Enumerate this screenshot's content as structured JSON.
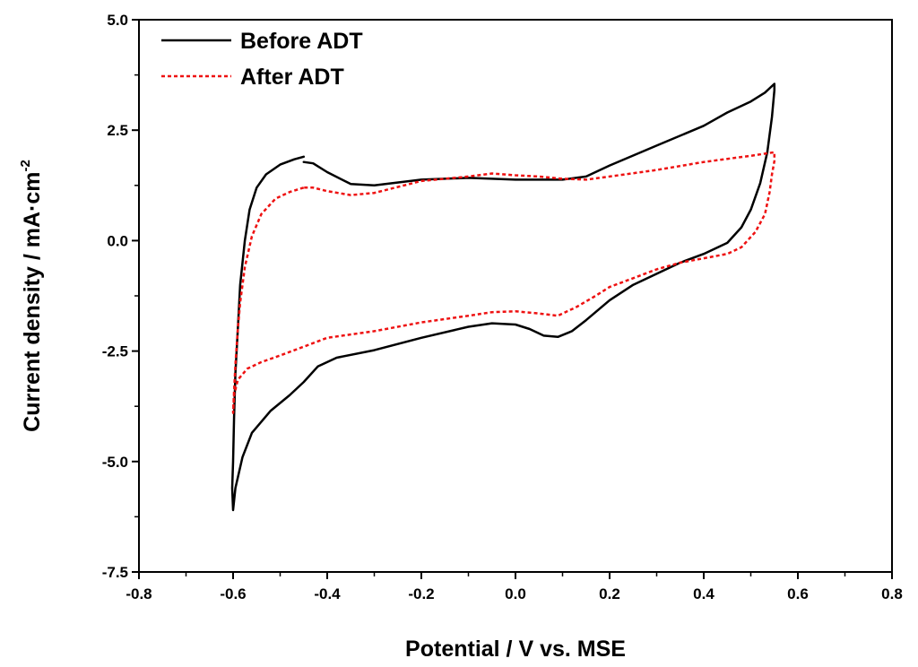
{
  "chart_data": {
    "type": "line",
    "title": "",
    "xlabel": "Potential / V vs. MSE",
    "ylabel_main": "Current density / mA·cm",
    "ylabel_superscript": "-2",
    "xlim": [
      -0.8,
      0.8
    ],
    "ylim": [
      -7.5,
      5.0
    ],
    "xticks": [
      -0.8,
      -0.6,
      -0.4,
      -0.2,
      0.0,
      0.2,
      0.4,
      0.6,
      0.8
    ],
    "xtick_labels": [
      "-0.8",
      "-0.6",
      "-0.4",
      "-0.2",
      "0.0",
      "0.2",
      "0.4",
      "0.6",
      "0.8"
    ],
    "yticks": [
      -7.5,
      -5.0,
      -2.5,
      0.0,
      2.5,
      5.0
    ],
    "ytick_labels": [
      "-7.5",
      "-5.0",
      "-2.5",
      "0.0",
      "2.5",
      "5.0"
    ],
    "grid": false,
    "legend_position": "top-left",
    "series": [
      {
        "name": "Before ADT",
        "color": "#000000",
        "style": "solid",
        "points": [
          [
            -0.45,
            1.9
          ],
          [
            -0.47,
            1.84
          ],
          [
            -0.5,
            1.72
          ],
          [
            -0.53,
            1.5
          ],
          [
            -0.55,
            1.2
          ],
          [
            -0.565,
            0.7
          ],
          [
            -0.575,
            0.0
          ],
          [
            -0.585,
            -1.0
          ],
          [
            -0.59,
            -2.0
          ],
          [
            -0.595,
            -3.0
          ],
          [
            -0.598,
            -4.0
          ],
          [
            -0.6,
            -5.0
          ],
          [
            -0.602,
            -5.6
          ],
          [
            -0.6,
            -6.1
          ],
          [
            -0.595,
            -5.6
          ],
          [
            -0.58,
            -4.9
          ],
          [
            -0.56,
            -4.35
          ],
          [
            -0.52,
            -3.85
          ],
          [
            -0.48,
            -3.5
          ],
          [
            -0.45,
            -3.2
          ],
          [
            -0.42,
            -2.85
          ],
          [
            -0.38,
            -2.65
          ],
          [
            -0.3,
            -2.48
          ],
          [
            -0.2,
            -2.2
          ],
          [
            -0.1,
            -1.95
          ],
          [
            -0.05,
            -1.87
          ],
          [
            0.0,
            -1.9
          ],
          [
            0.03,
            -2.0
          ],
          [
            0.06,
            -2.15
          ],
          [
            0.09,
            -2.18
          ],
          [
            0.12,
            -2.05
          ],
          [
            0.15,
            -1.8
          ],
          [
            0.2,
            -1.35
          ],
          [
            0.25,
            -1.0
          ],
          [
            0.3,
            -0.75
          ],
          [
            0.35,
            -0.5
          ],
          [
            0.4,
            -0.3
          ],
          [
            0.45,
            -0.05
          ],
          [
            0.48,
            0.3
          ],
          [
            0.5,
            0.7
          ],
          [
            0.52,
            1.3
          ],
          [
            0.535,
            2.0
          ],
          [
            0.545,
            2.8
          ],
          [
            0.55,
            3.4
          ],
          [
            0.55,
            3.55
          ],
          [
            0.53,
            3.35
          ],
          [
            0.5,
            3.15
          ],
          [
            0.45,
            2.9
          ],
          [
            0.4,
            2.6
          ],
          [
            0.3,
            2.15
          ],
          [
            0.2,
            1.7
          ],
          [
            0.15,
            1.45
          ],
          [
            0.1,
            1.38
          ],
          [
            0.0,
            1.38
          ],
          [
            -0.1,
            1.42
          ],
          [
            -0.2,
            1.38
          ],
          [
            -0.3,
            1.25
          ],
          [
            -0.35,
            1.28
          ],
          [
            -0.4,
            1.55
          ],
          [
            -0.43,
            1.75
          ],
          [
            -0.45,
            1.78
          ]
        ]
      },
      {
        "name": "After ADT",
        "color": "#ee1111",
        "style": "dashed",
        "points": [
          [
            -0.45,
            1.2
          ],
          [
            -0.48,
            1.1
          ],
          [
            -0.51,
            0.95
          ],
          [
            -0.54,
            0.6
          ],
          [
            -0.56,
            0.1
          ],
          [
            -0.575,
            -0.6
          ],
          [
            -0.585,
            -1.4
          ],
          [
            -0.59,
            -2.0
          ],
          [
            -0.595,
            -2.8
          ],
          [
            -0.598,
            -3.4
          ],
          [
            -0.6,
            -3.9
          ],
          [
            -0.598,
            -3.5
          ],
          [
            -0.59,
            -3.15
          ],
          [
            -0.57,
            -2.9
          ],
          [
            -0.54,
            -2.75
          ],
          [
            -0.5,
            -2.6
          ],
          [
            -0.45,
            -2.4
          ],
          [
            -0.4,
            -2.2
          ],
          [
            -0.3,
            -2.05
          ],
          [
            -0.2,
            -1.85
          ],
          [
            -0.1,
            -1.7
          ],
          [
            -0.05,
            -1.62
          ],
          [
            0.0,
            -1.6
          ],
          [
            0.05,
            -1.65
          ],
          [
            0.09,
            -1.7
          ],
          [
            0.13,
            -1.5
          ],
          [
            0.17,
            -1.25
          ],
          [
            0.2,
            -1.05
          ],
          [
            0.25,
            -0.85
          ],
          [
            0.3,
            -0.65
          ],
          [
            0.35,
            -0.5
          ],
          [
            0.4,
            -0.4
          ],
          [
            0.45,
            -0.3
          ],
          [
            0.48,
            -0.15
          ],
          [
            0.51,
            0.2
          ],
          [
            0.53,
            0.6
          ],
          [
            0.54,
            1.1
          ],
          [
            0.545,
            1.5
          ],
          [
            0.55,
            1.8
          ],
          [
            0.55,
            2.0
          ],
          [
            0.5,
            1.92
          ],
          [
            0.45,
            1.85
          ],
          [
            0.4,
            1.78
          ],
          [
            0.3,
            1.6
          ],
          [
            0.2,
            1.45
          ],
          [
            0.15,
            1.38
          ],
          [
            0.1,
            1.4
          ],
          [
            0.05,
            1.45
          ],
          [
            0.0,
            1.48
          ],
          [
            -0.05,
            1.52
          ],
          [
            -0.1,
            1.45
          ],
          [
            -0.2,
            1.35
          ],
          [
            -0.3,
            1.08
          ],
          [
            -0.35,
            1.03
          ],
          [
            -0.4,
            1.12
          ],
          [
            -0.43,
            1.2
          ],
          [
            -0.45,
            1.2
          ]
        ]
      }
    ]
  }
}
